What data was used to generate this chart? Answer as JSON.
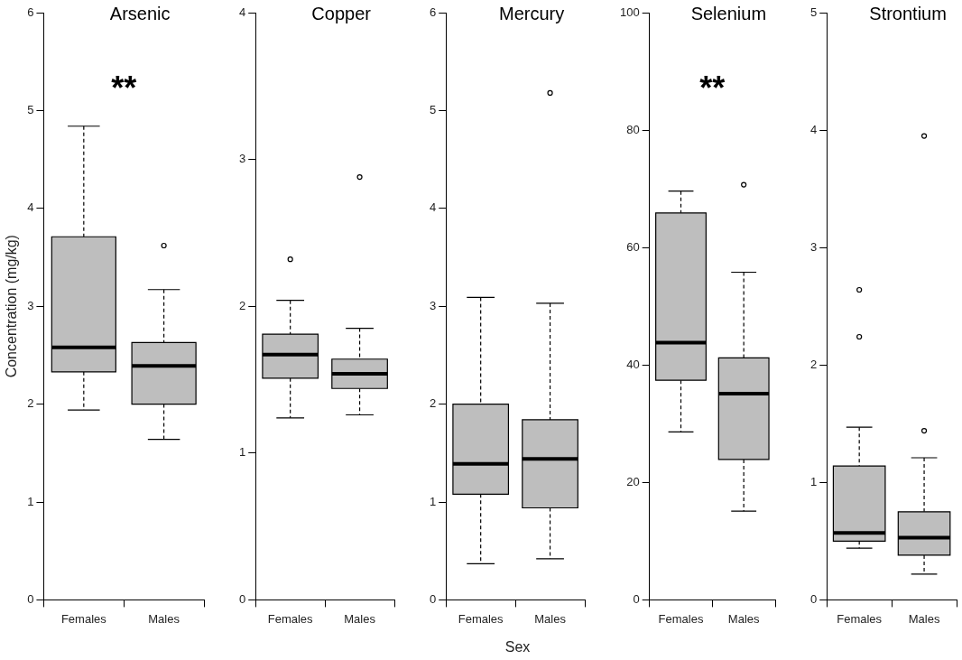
{
  "chart_data": [
    {
      "type": "box",
      "title": "Arsenic",
      "ylabel": "Concentration (mg/kg)",
      "categories": [
        "Females",
        "Males"
      ],
      "ylim": [
        0,
        6
      ],
      "yticks": [
        0,
        1,
        2,
        3,
        4,
        5,
        6
      ],
      "annotations": [
        "**"
      ],
      "series": [
        {
          "color": "#bebebe",
          "boxes": [
            {
              "low": 1.94,
              "q1": 2.33,
              "median": 2.58,
              "q3": 3.71,
              "high": 4.84
            },
            {
              "low": 1.64,
              "q1": 2.0,
              "median": 2.39,
              "q3": 2.63,
              "high": 3.17,
              "outliers": [
                3.62
              ]
            }
          ]
        }
      ]
    },
    {
      "type": "box",
      "title": "Copper",
      "categories": [
        "Females",
        "Males"
      ],
      "ylim": [
        0,
        4
      ],
      "yticks": [
        0,
        1,
        2,
        3,
        4
      ],
      "series": [
        {
          "color": "#bebebe",
          "boxes": [
            {
              "low": 1.24,
              "q1": 1.51,
              "median": 1.67,
              "q3": 1.81,
              "high": 2.04,
              "outliers": [
                2.32
              ]
            },
            {
              "low": 1.26,
              "q1": 1.44,
              "median": 1.54,
              "q3": 1.64,
              "high": 1.85,
              "outliers": [
                2.88
              ]
            }
          ]
        }
      ]
    },
    {
      "type": "box",
      "title": "Mercury",
      "xlabel": "Sex",
      "categories": [
        "Females",
        "Males"
      ],
      "ylim": [
        0,
        6
      ],
      "yticks": [
        0,
        1,
        2,
        3,
        4,
        5,
        6
      ],
      "series": [
        {
          "color": "#bebebe",
          "boxes": [
            {
              "low": 0.37,
              "q1": 1.08,
              "median": 1.39,
              "q3": 2.0,
              "high": 3.09
            },
            {
              "low": 0.42,
              "q1": 0.94,
              "median": 1.44,
              "q3": 1.84,
              "high": 3.03,
              "outliers": [
                5.18
              ]
            }
          ]
        }
      ]
    },
    {
      "type": "box",
      "title": "Selenium",
      "categories": [
        "Females",
        "Males"
      ],
      "ylim": [
        0,
        100
      ],
      "yticks": [
        0,
        20,
        40,
        60,
        80,
        100
      ],
      "annotations": [
        "**"
      ],
      "series": [
        {
          "color": "#bebebe",
          "boxes": [
            {
              "low": 28.6,
              "q1": 37.4,
              "median": 43.8,
              "q3": 65.9,
              "high": 69.6
            },
            {
              "low": 15.1,
              "q1": 23.9,
              "median": 35.1,
              "q3": 41.2,
              "high": 55.8,
              "outliers": [
                70.7
              ]
            }
          ]
        }
      ]
    },
    {
      "type": "box",
      "title": "Strontium",
      "categories": [
        "Females",
        "Males"
      ],
      "ylim": [
        0,
        5
      ],
      "yticks": [
        0,
        1,
        2,
        3,
        4,
        5
      ],
      "series": [
        {
          "color": "#bebebe",
          "boxes": [
            {
              "low": 0.44,
              "q1": 0.5,
              "median": 0.57,
              "q3": 1.14,
              "high": 1.47,
              "outliers": [
                2.24,
                2.64
              ]
            },
            {
              "low": 0.22,
              "q1": 0.38,
              "median": 0.53,
              "q3": 0.75,
              "high": 1.21,
              "outliers": [
                1.44,
                3.95
              ]
            }
          ]
        }
      ]
    }
  ]
}
